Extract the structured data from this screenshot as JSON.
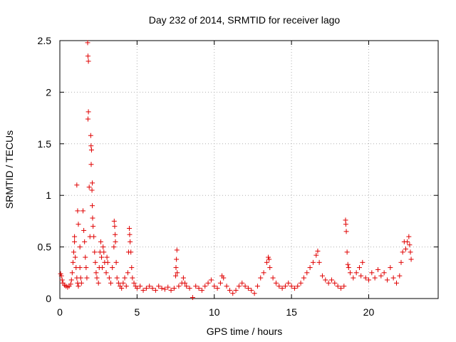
{
  "chart_data": {
    "type": "scatter",
    "title": "Day 232 of 2014, SRMTID for receiver lago",
    "xlabel": "GPS time / hours",
    "ylabel": "SRMTID / TECUs",
    "xlim": [
      0,
      24.5
    ],
    "ylim": [
      0,
      2.5
    ],
    "xticks": [
      0,
      5,
      10,
      15,
      20
    ],
    "xtick_labels": [
      "0",
      "5",
      "10",
      "15",
      "20"
    ],
    "yticks": [
      0,
      0.5,
      1,
      1.5,
      2,
      2.5
    ],
    "ytick_labels": [
      "0",
      "0.5",
      "1",
      "1.5",
      "2",
      "2.5"
    ],
    "grid": true,
    "marker": "+",
    "color": "#e00000",
    "series": [
      {
        "name": "SRMTID",
        "points": [
          [
            0.05,
            0.24
          ],
          [
            0.1,
            0.22
          ],
          [
            0.15,
            0.18
          ],
          [
            0.2,
            0.15
          ],
          [
            0.3,
            0.13
          ],
          [
            0.4,
            0.12
          ],
          [
            0.5,
            0.11
          ],
          [
            0.6,
            0.12
          ],
          [
            0.7,
            0.14
          ],
          [
            0.75,
            0.18
          ],
          [
            0.8,
            0.25
          ],
          [
            0.85,
            0.35
          ],
          [
            0.9,
            0.45
          ],
          [
            0.95,
            0.55
          ],
          [
            0.95,
            0.6
          ],
          [
            1.0,
            0.4
          ],
          [
            1.05,
            0.3
          ],
          [
            1.1,
            0.2
          ],
          [
            1.15,
            0.15
          ],
          [
            1.2,
            0.12
          ],
          [
            1.1,
            1.1
          ],
          [
            1.15,
            0.85
          ],
          [
            1.2,
            0.72
          ],
          [
            1.3,
            0.5
          ],
          [
            1.3,
            0.3
          ],
          [
            1.35,
            0.2
          ],
          [
            1.4,
            0.15
          ],
          [
            1.5,
            0.85
          ],
          [
            1.55,
            0.66
          ],
          [
            1.6,
            0.55
          ],
          [
            1.65,
            0.4
          ],
          [
            1.7,
            0.3
          ],
          [
            1.75,
            0.2
          ],
          [
            1.8,
            2.48
          ],
          [
            1.82,
            2.35
          ],
          [
            1.85,
            2.3
          ],
          [
            1.85,
            1.81
          ],
          [
            1.82,
            1.74
          ],
          [
            1.9,
            1.08
          ],
          [
            1.95,
            0.6
          ],
          [
            2.0,
            1.58
          ],
          [
            2.02,
            1.48
          ],
          [
            2.05,
            1.44
          ],
          [
            2.03,
            1.3
          ],
          [
            2.1,
            1.12
          ],
          [
            2.08,
            1.05
          ],
          [
            2.1,
            0.9
          ],
          [
            2.12,
            0.78
          ],
          [
            2.15,
            0.7
          ],
          [
            2.2,
            0.6
          ],
          [
            2.25,
            0.45
          ],
          [
            2.3,
            0.35
          ],
          [
            2.35,
            0.25
          ],
          [
            2.4,
            0.2
          ],
          [
            2.5,
            0.15
          ],
          [
            2.55,
            0.3
          ],
          [
            2.6,
            0.45
          ],
          [
            2.65,
            0.55
          ],
          [
            2.7,
            0.4
          ],
          [
            2.75,
            0.3
          ],
          [
            2.8,
            0.5
          ],
          [
            2.85,
            0.45
          ],
          [
            2.9,
            0.35
          ],
          [
            3.0,
            0.25
          ],
          [
            3.05,
            0.4
          ],
          [
            3.1,
            0.35
          ],
          [
            3.2,
            0.2
          ],
          [
            3.3,
            0.15
          ],
          [
            3.4,
            0.3
          ],
          [
            3.5,
            0.5
          ],
          [
            3.52,
            0.75
          ],
          [
            3.55,
            0.7
          ],
          [
            3.58,
            0.62
          ],
          [
            3.6,
            0.55
          ],
          [
            3.65,
            0.35
          ],
          [
            3.7,
            0.2
          ],
          [
            3.8,
            0.15
          ],
          [
            3.9,
            0.12
          ],
          [
            4.0,
            0.1
          ],
          [
            4.1,
            0.15
          ],
          [
            4.2,
            0.2
          ],
          [
            4.3,
            0.12
          ],
          [
            4.4,
            0.25
          ],
          [
            4.45,
            0.45
          ],
          [
            4.5,
            0.68
          ],
          [
            4.52,
            0.62
          ],
          [
            4.55,
            0.55
          ],
          [
            4.6,
            0.45
          ],
          [
            4.65,
            0.3
          ],
          [
            4.7,
            0.2
          ],
          [
            4.8,
            0.15
          ],
          [
            4.9,
            0.12
          ],
          [
            5.0,
            0.1
          ],
          [
            5.2,
            0.12
          ],
          [
            5.4,
            0.08
          ],
          [
            5.6,
            0.1
          ],
          [
            5.8,
            0.12
          ],
          [
            6.0,
            0.1
          ],
          [
            6.2,
            0.08
          ],
          [
            6.4,
            0.12
          ],
          [
            6.6,
            0.1
          ],
          [
            6.8,
            0.09
          ],
          [
            7.0,
            0.11
          ],
          [
            7.2,
            0.08
          ],
          [
            7.4,
            0.1
          ],
          [
            7.5,
            0.22
          ],
          [
            7.52,
            0.3
          ],
          [
            7.55,
            0.38
          ],
          [
            7.58,
            0.47
          ],
          [
            7.6,
            0.25
          ],
          [
            7.7,
            0.12
          ],
          [
            7.9,
            0.15
          ],
          [
            8.0,
            0.2
          ],
          [
            8.1,
            0.15
          ],
          [
            8.2,
            0.12
          ],
          [
            8.4,
            0.1
          ],
          [
            8.6,
            0.01
          ],
          [
            8.8,
            0.12
          ],
          [
            9.0,
            0.1
          ],
          [
            9.2,
            0.08
          ],
          [
            9.4,
            0.12
          ],
          [
            9.6,
            0.15
          ],
          [
            9.8,
            0.18
          ],
          [
            10.0,
            0.12
          ],
          [
            10.2,
            0.1
          ],
          [
            10.4,
            0.15
          ],
          [
            10.5,
            0.22
          ],
          [
            10.6,
            0.2
          ],
          [
            10.8,
            0.12
          ],
          [
            11.0,
            0.08
          ],
          [
            11.2,
            0.05
          ],
          [
            11.4,
            0.08
          ],
          [
            11.6,
            0.12
          ],
          [
            11.8,
            0.15
          ],
          [
            12.0,
            0.12
          ],
          [
            12.2,
            0.1
          ],
          [
            12.4,
            0.08
          ],
          [
            12.6,
            0.05
          ],
          [
            12.8,
            0.12
          ],
          [
            13.0,
            0.2
          ],
          [
            13.2,
            0.25
          ],
          [
            13.4,
            0.35
          ],
          [
            13.5,
            0.4
          ],
          [
            13.55,
            0.38
          ],
          [
            13.6,
            0.3
          ],
          [
            13.8,
            0.2
          ],
          [
            14.0,
            0.15
          ],
          [
            14.2,
            0.12
          ],
          [
            14.4,
            0.1
          ],
          [
            14.6,
            0.12
          ],
          [
            14.8,
            0.15
          ],
          [
            15.0,
            0.12
          ],
          [
            15.2,
            0.1
          ],
          [
            15.4,
            0.12
          ],
          [
            15.6,
            0.15
          ],
          [
            15.8,
            0.2
          ],
          [
            16.0,
            0.25
          ],
          [
            16.2,
            0.3
          ],
          [
            16.4,
            0.35
          ],
          [
            16.6,
            0.42
          ],
          [
            16.7,
            0.46
          ],
          [
            16.8,
            0.35
          ],
          [
            17.0,
            0.22
          ],
          [
            17.2,
            0.18
          ],
          [
            17.4,
            0.15
          ],
          [
            17.6,
            0.18
          ],
          [
            17.8,
            0.15
          ],
          [
            18.0,
            0.12
          ],
          [
            18.2,
            0.1
          ],
          [
            18.4,
            0.12
          ],
          [
            18.5,
            0.76
          ],
          [
            18.52,
            0.72
          ],
          [
            18.55,
            0.65
          ],
          [
            18.6,
            0.45
          ],
          [
            18.65,
            0.33
          ],
          [
            18.7,
            0.3
          ],
          [
            18.8,
            0.25
          ],
          [
            19.0,
            0.2
          ],
          [
            19.2,
            0.25
          ],
          [
            19.4,
            0.3
          ],
          [
            19.5,
            0.22
          ],
          [
            19.6,
            0.35
          ],
          [
            19.8,
            0.2
          ],
          [
            20.0,
            0.18
          ],
          [
            20.2,
            0.25
          ],
          [
            20.4,
            0.2
          ],
          [
            20.6,
            0.28
          ],
          [
            20.8,
            0.22
          ],
          [
            21.0,
            0.25
          ],
          [
            21.2,
            0.18
          ],
          [
            21.4,
            0.3
          ],
          [
            21.6,
            0.2
          ],
          [
            21.8,
            0.15
          ],
          [
            22.0,
            0.22
          ],
          [
            22.1,
            0.35
          ],
          [
            22.2,
            0.45
          ],
          [
            22.3,
            0.55
          ],
          [
            22.4,
            0.48
          ],
          [
            22.5,
            0.55
          ],
          [
            22.6,
            0.6
          ],
          [
            22.65,
            0.52
          ],
          [
            22.7,
            0.45
          ],
          [
            22.75,
            0.38
          ]
        ]
      }
    ]
  }
}
